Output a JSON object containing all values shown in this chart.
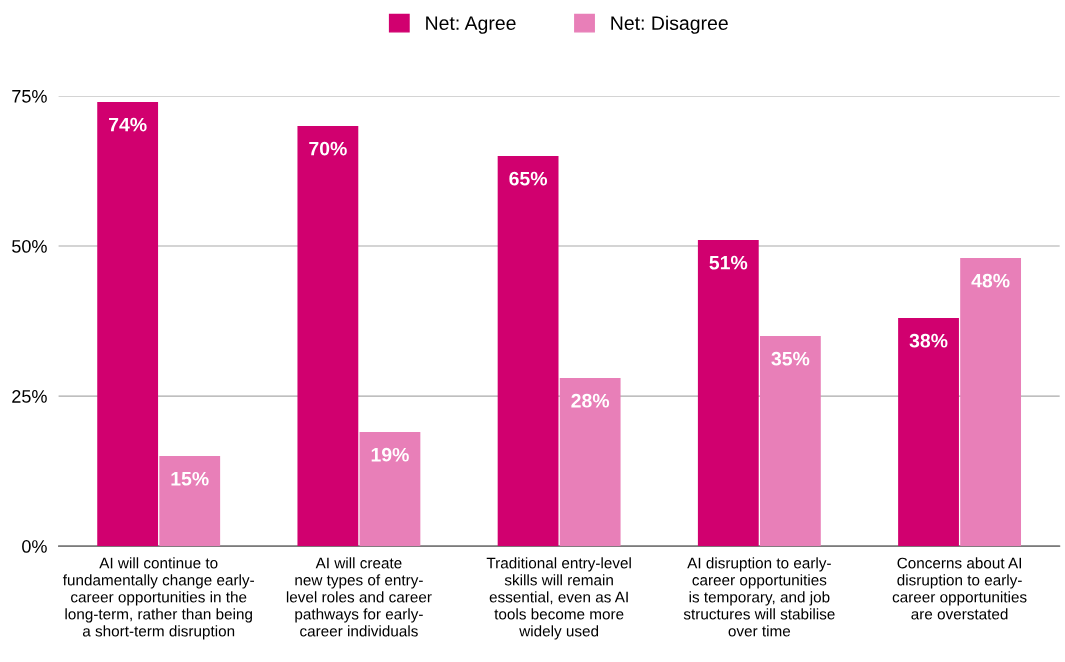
{
  "chart_data": {
    "type": "bar",
    "categories": [
      "AI will continue to\nfundamentally change early-\ncareer opportunities in the\nlong-term, rather than being\na short-term disruption",
      "AI will create\nnew types of entry-\nlevel roles and career\npathways for early-\ncareer individuals",
      "Traditional entry-level\nskills will remain\nessential, even as AI\ntools become more\nwidely used",
      "AI disruption to early-\ncareer opportunities\nis temporary, and job\nstructures will stabilise\nover time",
      "Concerns about AI\ndisruption to early-\ncareer opportunities\nare overstated"
    ],
    "series": [
      {
        "name": "Net: Agree",
        "color": "#d1006f",
        "values": [
          74,
          70,
          65,
          51,
          38
        ],
        "value_labels": [
          "74%",
          "70%",
          "65%",
          "51%",
          "38%"
        ]
      },
      {
        "name": "Net: Disagree",
        "color": "#e87fb8",
        "values": [
          15,
          19,
          28,
          35,
          48
        ],
        "value_labels": [
          "15%",
          "19%",
          "28%",
          "35%",
          "48%"
        ]
      }
    ],
    "ylim": [
      0,
      75
    ],
    "yticks": [
      {
        "value": 0,
        "label": "0%"
      },
      {
        "value": 25,
        "label": "25%"
      },
      {
        "value": 50,
        "label": "50%"
      },
      {
        "value": 75,
        "label": "75%"
      }
    ],
    "grid": "y",
    "legend": "top"
  }
}
